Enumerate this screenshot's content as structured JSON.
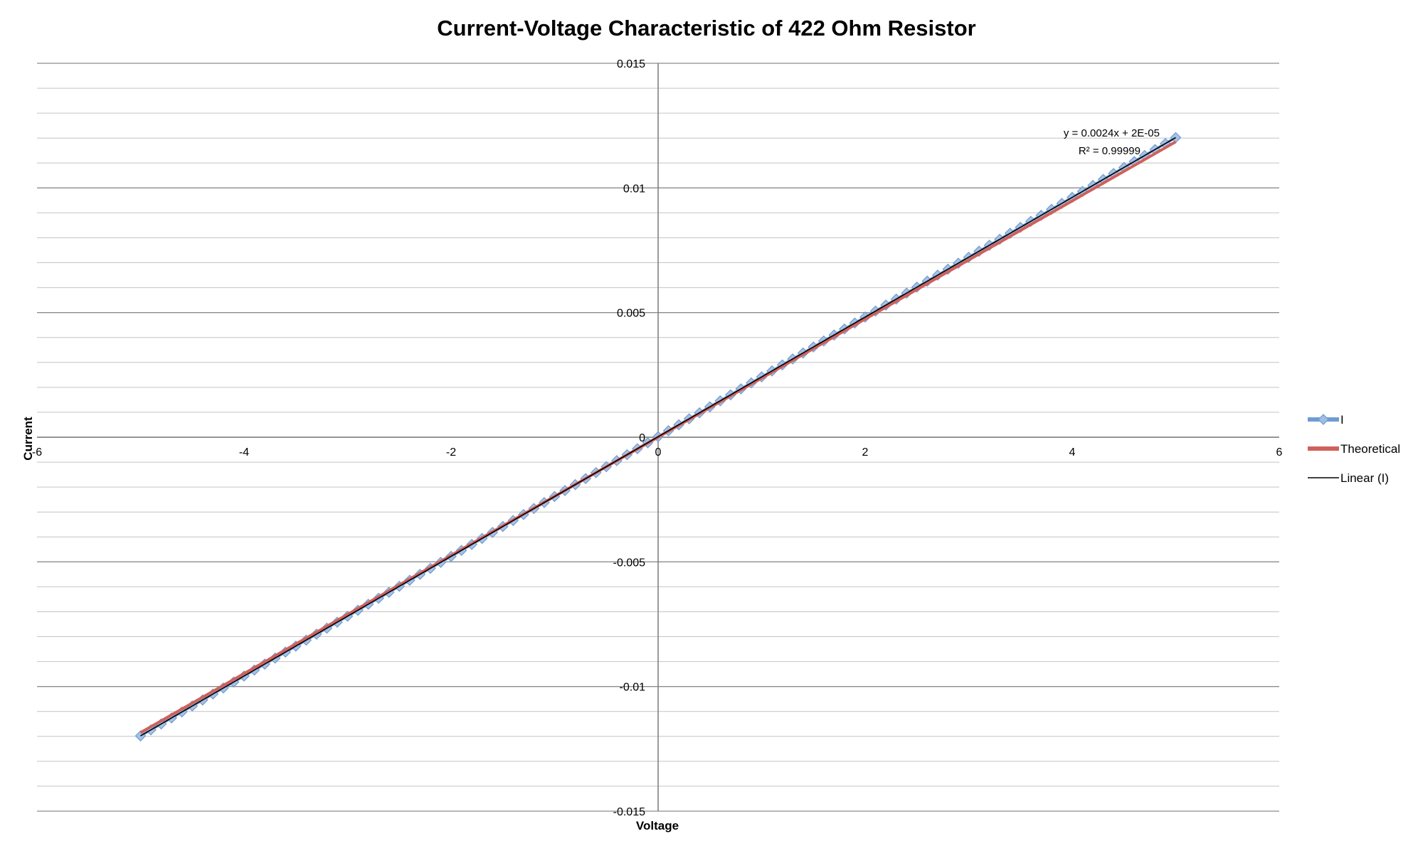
{
  "chart_data": {
    "type": "scatter",
    "title": "Current-Voltage Characteristic of 422 Ohm Resistor",
    "xlabel": "Voltage",
    "ylabel": "Current",
    "xlim": [
      -6,
      6
    ],
    "ylim": [
      -0.015,
      0.015
    ],
    "x_ticks": [
      -6,
      -4,
      -2,
      0,
      2,
      4,
      6
    ],
    "y_ticks": [
      0.015,
      0.01,
      0.005,
      0,
      -0.005,
      -0.01,
      -0.015
    ],
    "x_tick_labels": [
      "-6",
      "-4",
      "-2",
      "0",
      "2",
      "4",
      "6"
    ],
    "y_tick_labels": [
      "0.015",
      "0.01",
      "0.005",
      "0",
      "-0.005",
      "-0.01",
      "-0.015"
    ],
    "grid": true,
    "legend_position": "right",
    "series": [
      {
        "name": "I",
        "style": "line-markers",
        "marker": "diamond",
        "color": "#6f9bd1",
        "x_start": -5,
        "x_end": 5,
        "x_step": 0.1,
        "slope": 0.0024,
        "intercept": 2e-05
      },
      {
        "name": "Theoretical",
        "style": "line",
        "color": "#d0605a",
        "x": [
          -5,
          5
        ],
        "y": [
          -0.01185,
          0.01185
        ]
      },
      {
        "name": "Linear (I)",
        "style": "trendline",
        "color": "#000000",
        "x": [
          -5,
          5
        ],
        "y": [
          -0.01198,
          0.01202
        ]
      }
    ],
    "annotations": {
      "equation": "y = 0.0024x + 2E-05",
      "r_squared": "R² = 0.99999"
    }
  }
}
